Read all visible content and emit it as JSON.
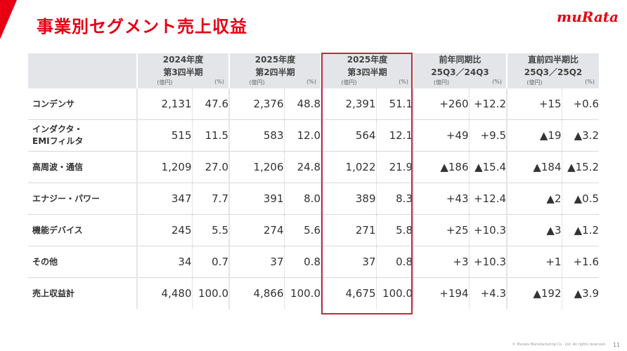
{
  "title": "事業別セグメント売上収益",
  "logo_text": "muRata",
  "columns": [
    {
      "line1": "2024年度",
      "line2": "第3四半期"
    },
    {
      "line1": "2025年度",
      "line2": "第2四半期"
    },
    {
      "line1": "2025年度",
      "line2": "第3四半期"
    },
    {
      "line1": "前年同期比",
      "line2": "25Q3／24Q3"
    },
    {
      "line1": "直前四半期比",
      "line2": "25Q3／25Q2"
    }
  ],
  "units": {
    "amount": "(億円)",
    "pct": "(%)"
  },
  "rows": [
    {
      "name": "コンデンサ",
      "name2": "",
      "v": [
        "2,131",
        "47.6",
        "2,376",
        "48.8",
        "2,391",
        "51.1",
        "+260",
        "+12.2",
        "+15",
        "+0.6"
      ]
    },
    {
      "name": "インダクタ・",
      "name2": "EMIフィルタ",
      "v": [
        "515",
        "11.5",
        "583",
        "12.0",
        "564",
        "12.1",
        "+49",
        "+9.5",
        "▲19",
        "▲3.2"
      ]
    },
    {
      "name": "高周波・通信",
      "name2": "",
      "v": [
        "1,209",
        "27.0",
        "1,206",
        "24.8",
        "1,022",
        "21.9",
        "▲186",
        "▲15.4",
        "▲184",
        "▲15.2"
      ]
    },
    {
      "name": "エナジー・パワー",
      "name2": "",
      "v": [
        "347",
        "7.7",
        "391",
        "8.0",
        "389",
        "8.3",
        "+43",
        "+12.4",
        "▲2",
        "▲0.5"
      ]
    },
    {
      "name": "機能デバイス",
      "name2": "",
      "v": [
        "245",
        "5.5",
        "274",
        "5.6",
        "271",
        "5.8",
        "+25",
        "+10.3",
        "▲3",
        "▲1.2"
      ]
    },
    {
      "name": "その他",
      "name2": "",
      "v": [
        "34",
        "0.7",
        "37",
        "0.8",
        "37",
        "0.8",
        "+3",
        "+10.3",
        "+1",
        "+1.6"
      ]
    },
    {
      "name": "売上収益計",
      "name2": "",
      "v": [
        "4,480",
        "100.0",
        "4,866",
        "100.0",
        "4,675",
        "100.0",
        "+194",
        "+4.3",
        "▲192",
        "▲3.9"
      ]
    }
  ],
  "footer": "© Murata Manufacturing Co., Ltd. All rights reserved.",
  "page_number": "11",
  "colors": {
    "brand": "#e60012",
    "highlight": "#c5283c",
    "header_bg": "#e3e5e8"
  }
}
